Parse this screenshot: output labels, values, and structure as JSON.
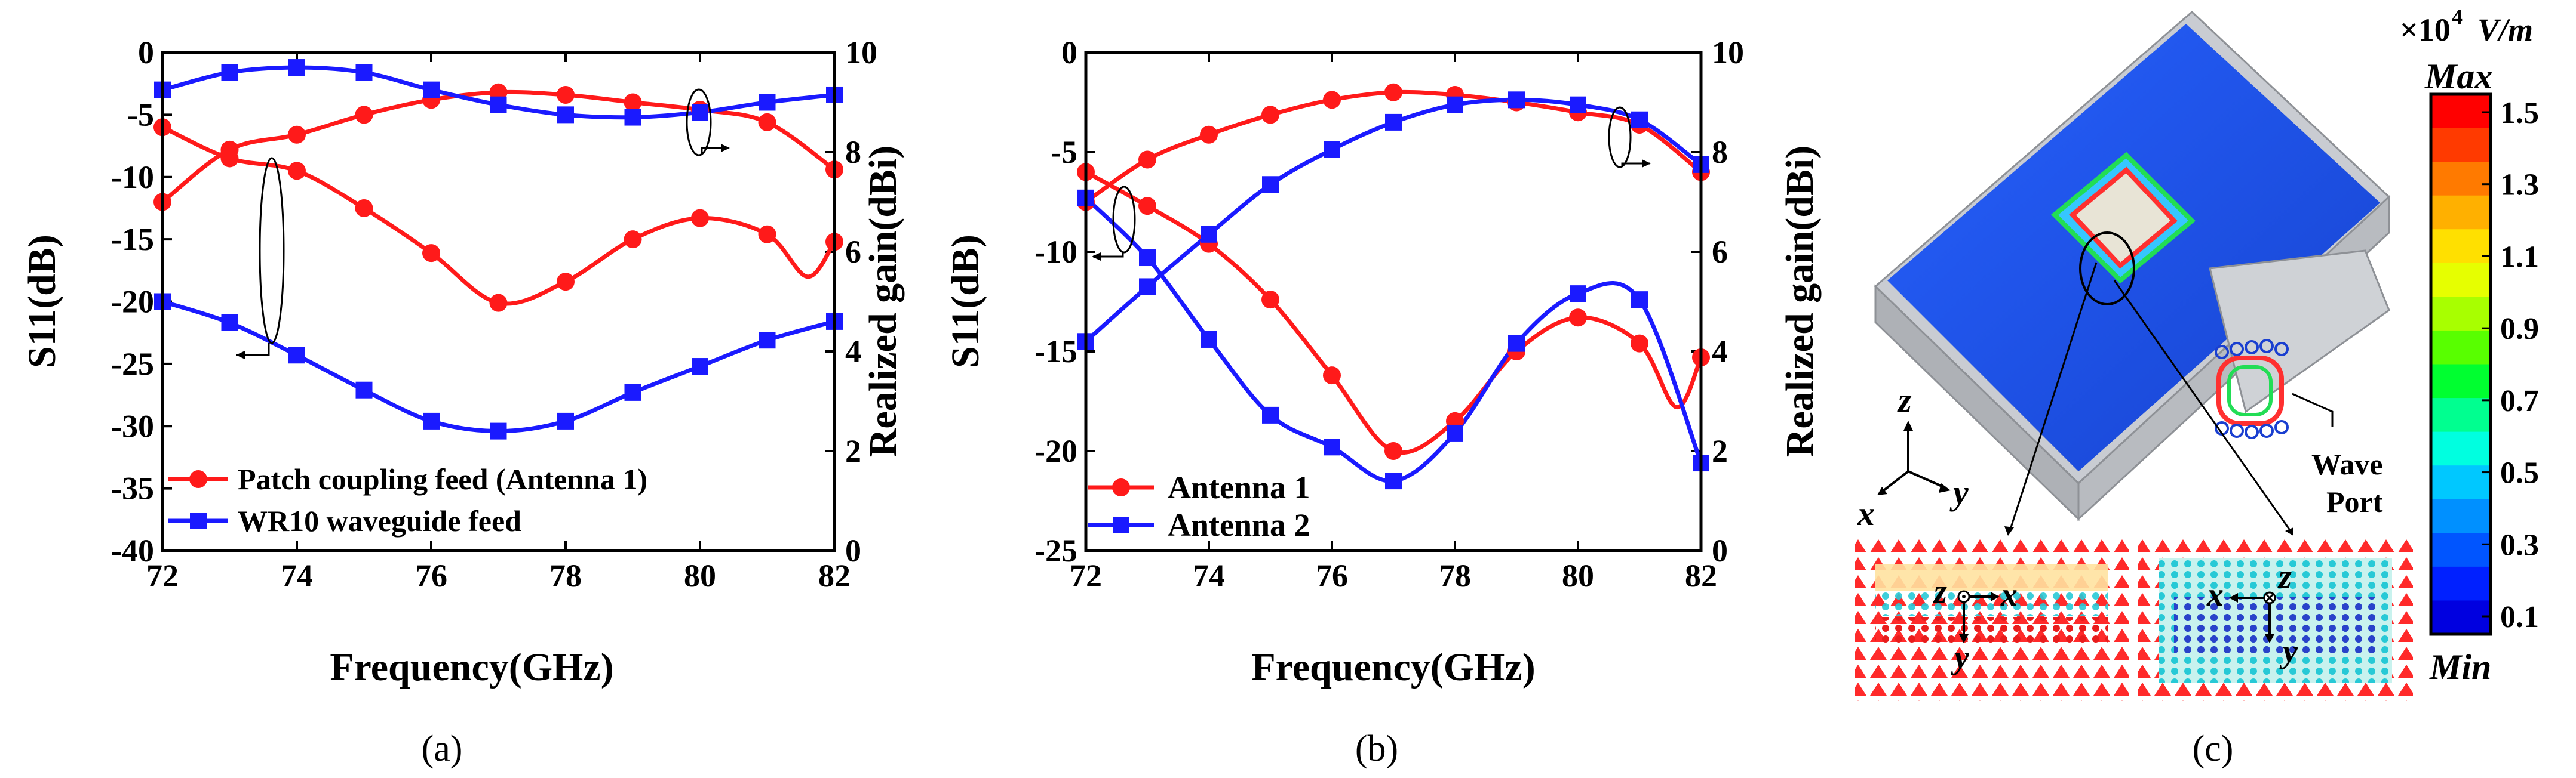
{
  "chart_data": [
    {
      "type": "line",
      "panel": "(a)",
      "xlabel": "Frequency(GHz)",
      "ylabel_left": "S11(dB)",
      "ylabel_right": "Realized gain(dBi)",
      "xlim": [
        72,
        82
      ],
      "ylim_left": [
        -40,
        0
      ],
      "ylim_right": [
        0,
        10
      ],
      "xticks": [
        "72",
        "74",
        "76",
        "78",
        "80",
        "82"
      ],
      "yticks_left": [
        "0",
        "-5",
        "-10",
        "-15",
        "-20",
        "-25",
        "-30",
        "-35",
        "-40"
      ],
      "yticks_right": [
        "0",
        "2",
        "4",
        "6",
        "8",
        "10"
      ],
      "legend": [
        "Patch coupling feed (Antenna 1)",
        "WR10 waveguide feed"
      ],
      "series": [
        {
          "name": "Patch coupling feed (Antenna 1)",
          "axis": "left",
          "color": "#ff1a1a",
          "marker": "circle",
          "x": [
            72,
            73,
            74,
            75,
            76,
            77,
            78,
            79,
            80,
            81,
            81.6,
            82
          ],
          "values": [
            -6.0,
            -8.5,
            -9.5,
            -12.5,
            -16.1,
            -20.1,
            -18.4,
            -15.0,
            -13.3,
            -14.6,
            -18.0,
            -15.2
          ]
        },
        {
          "name": "Patch coupling feed (Antenna 1)",
          "axis": "right",
          "color": "#ff1a1a",
          "marker": "circle",
          "x": [
            72,
            73,
            74,
            75,
            76,
            77,
            78,
            79,
            80,
            81,
            82
          ],
          "values": [
            7.0,
            8.05,
            8.35,
            8.75,
            9.05,
            9.2,
            9.15,
            9.0,
            8.85,
            8.6,
            7.65
          ]
        },
        {
          "name": "WR10 waveguide feed",
          "axis": "left",
          "color": "#1a1aff",
          "marker": "square",
          "x": [
            72,
            73,
            74,
            75,
            76,
            77,
            78,
            79,
            80,
            81,
            82
          ],
          "values": [
            -20.0,
            -21.7,
            -24.3,
            -27.1,
            -29.6,
            -30.4,
            -29.6,
            -27.3,
            -25.2,
            -23.1,
            -21.6
          ]
        },
        {
          "name": "WR10 waveguide feed",
          "axis": "right",
          "color": "#1a1aff",
          "marker": "square",
          "x": [
            72,
            73,
            74,
            75,
            76,
            77,
            78,
            79,
            80,
            81,
            82
          ],
          "values": [
            9.25,
            9.6,
            9.7,
            9.6,
            9.25,
            8.95,
            8.75,
            8.7,
            8.8,
            9.0,
            9.15
          ]
        }
      ]
    },
    {
      "type": "line",
      "panel": "(b)",
      "xlabel": "Frequency(GHz)",
      "ylabel_left": "S11(dB)",
      "ylabel_right": "Realized gain(dBi)",
      "xlim": [
        72,
        82
      ],
      "ylim_left": [
        -25,
        0
      ],
      "ylim_right": [
        0,
        10
      ],
      "xticks": [
        "72",
        "74",
        "76",
        "78",
        "80",
        "82"
      ],
      "yticks_left": [
        "0",
        "-5",
        "-10",
        "-15",
        "-20",
        "-25"
      ],
      "yticks_right": [
        "0",
        "2",
        "4",
        "6",
        "8",
        "10"
      ],
      "legend": [
        "Antenna 1",
        "Antenna 2"
      ],
      "series": [
        {
          "name": "Antenna 1",
          "axis": "left",
          "color": "#ff1a1a",
          "marker": "circle",
          "x": [
            72,
            73,
            74,
            75,
            76,
            77,
            78,
            79,
            80,
            81,
            81.6,
            82
          ],
          "values": [
            -6.0,
            -7.7,
            -9.6,
            -12.4,
            -16.2,
            -20.0,
            -18.5,
            -15.0,
            -13.3,
            -14.6,
            -17.8,
            -15.3
          ]
        },
        {
          "name": "Antenna 1",
          "axis": "right",
          "color": "#ff1a1a",
          "marker": "circle",
          "x": [
            72,
            73,
            74,
            75,
            76,
            77,
            78,
            79,
            80,
            81,
            82
          ],
          "values": [
            7.0,
            7.85,
            8.35,
            8.75,
            9.05,
            9.2,
            9.15,
            9.0,
            8.8,
            8.55,
            7.6
          ]
        },
        {
          "name": "Antenna 2",
          "axis": "left",
          "color": "#1a1aff",
          "marker": "square",
          "x": [
            72,
            73,
            74,
            75,
            76,
            77,
            78,
            79,
            80,
            81,
            82
          ],
          "values": [
            -7.3,
            -10.3,
            -14.4,
            -18.2,
            -19.8,
            -21.5,
            -19.1,
            -14.6,
            -12.1,
            -12.4,
            -20.6
          ]
        },
        {
          "name": "Antenna 2",
          "axis": "right",
          "color": "#1a1aff",
          "marker": "square",
          "x": [
            72,
            73,
            74,
            75,
            76,
            77,
            78,
            79,
            80,
            81,
            82
          ],
          "values": [
            4.2,
            5.3,
            6.35,
            7.35,
            8.05,
            8.6,
            8.95,
            9.05,
            8.95,
            8.65,
            7.75
          ]
        }
      ]
    }
  ],
  "captions": {
    "a": "(a)",
    "b": "(b)",
    "c": "(c)"
  },
  "panel_c": {
    "colorbar": {
      "unit_prefix": "×10",
      "unit_exp": "4",
      "unit": "V/m",
      "max_label": "Max",
      "min_label": "Min",
      "ticks": [
        "1.5",
        "1.3",
        "1.1",
        "0.9",
        "0.7",
        "0.5",
        "0.3",
        "0.1"
      ],
      "colors": [
        "#ff0000",
        "#ff3a00",
        "#ff7a00",
        "#ffb000",
        "#ffe000",
        "#e6ff00",
        "#a8ff00",
        "#58ff00",
        "#00ff30",
        "#00ff90",
        "#00ffe0",
        "#00c8ff",
        "#0090ff",
        "#0055ff",
        "#0020ff",
        "#0000e0"
      ]
    },
    "port_label_1": "Wave",
    "port_label_2": "Port",
    "axis_labels": {
      "z": "z",
      "x": "x",
      "y": "y"
    },
    "inset_left": {
      "z": "z",
      "x": "x",
      "y": "y"
    },
    "inset_right": {
      "x": "x",
      "z": "z",
      "y": "y"
    }
  }
}
